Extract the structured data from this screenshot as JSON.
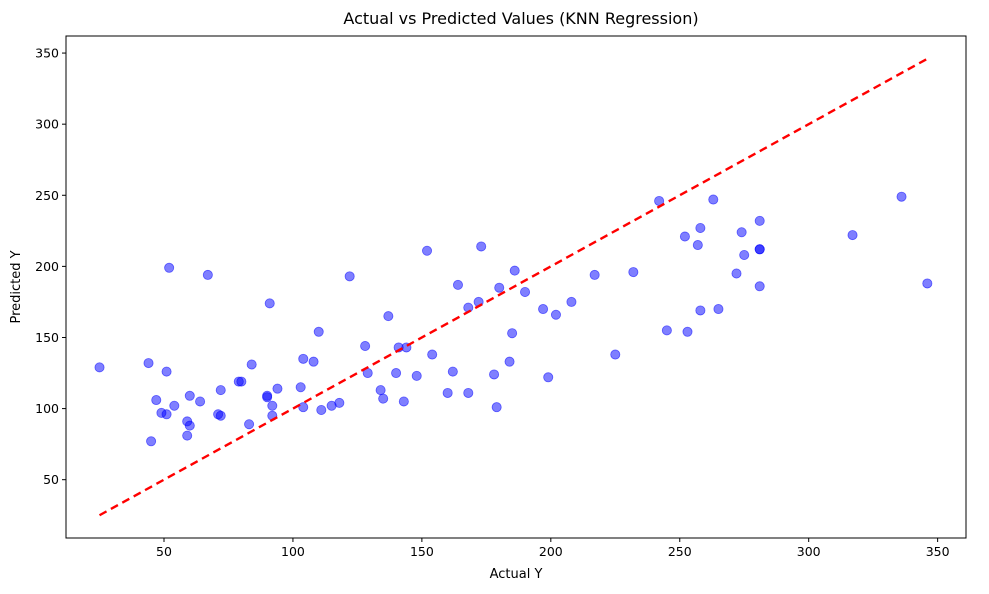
{
  "chart_data": {
    "type": "scatter",
    "title": "Actual vs Predicted Values (KNN Regression)",
    "xlabel": "Actual Y",
    "ylabel": "Predicted Y",
    "xlim": [
      12,
      361
    ],
    "ylim": [
      9,
      362
    ],
    "xticks": [
      50,
      100,
      150,
      200,
      250,
      300,
      350
    ],
    "yticks": [
      50,
      100,
      150,
      200,
      250,
      300,
      350
    ],
    "grid": false,
    "legend": "none",
    "point_color": "#0000ff",
    "point_opacity": 0.5,
    "reference_line": {
      "x": [
        25,
        346
      ],
      "y": [
        25,
        346
      ],
      "color": "#ff0000",
      "style": "dashed"
    },
    "points": [
      [
        25,
        129
      ],
      [
        44,
        132
      ],
      [
        45,
        77
      ],
      [
        47,
        106
      ],
      [
        49,
        97
      ],
      [
        51,
        96
      ],
      [
        51,
        126
      ],
      [
        52,
        199
      ],
      [
        54,
        102
      ],
      [
        59,
        81
      ],
      [
        59,
        91
      ],
      [
        60,
        88
      ],
      [
        60,
        109
      ],
      [
        64,
        105
      ],
      [
        67,
        194
      ],
      [
        71,
        96
      ],
      [
        72,
        113
      ],
      [
        72,
        95
      ],
      [
        79,
        119
      ],
      [
        80,
        119
      ],
      [
        83,
        89
      ],
      [
        84,
        131
      ],
      [
        90,
        109
      ],
      [
        90,
        108
      ],
      [
        91,
        174
      ],
      [
        92,
        102
      ],
      [
        92,
        95
      ],
      [
        94,
        114
      ],
      [
        103,
        115
      ],
      [
        104,
        135
      ],
      [
        104,
        101
      ],
      [
        108,
        133
      ],
      [
        110,
        154
      ],
      [
        111,
        99
      ],
      [
        115,
        102
      ],
      [
        118,
        104
      ],
      [
        122,
        193
      ],
      [
        128,
        144
      ],
      [
        129,
        125
      ],
      [
        134,
        113
      ],
      [
        135,
        107
      ],
      [
        137,
        165
      ],
      [
        140,
        125
      ],
      [
        141,
        143
      ],
      [
        143,
        105
      ],
      [
        144,
        143
      ],
      [
        148,
        123
      ],
      [
        152,
        211
      ],
      [
        154,
        138
      ],
      [
        160,
        111
      ],
      [
        162,
        126
      ],
      [
        164,
        187
      ],
      [
        168,
        171
      ],
      [
        168,
        111
      ],
      [
        172,
        175
      ],
      [
        173,
        214
      ],
      [
        178,
        124
      ],
      [
        179,
        101
      ],
      [
        180,
        185
      ],
      [
        184,
        133
      ],
      [
        185,
        153
      ],
      [
        186,
        197
      ],
      [
        190,
        182
      ],
      [
        197,
        170
      ],
      [
        199,
        122
      ],
      [
        202,
        166
      ],
      [
        208,
        175
      ],
      [
        217,
        194
      ],
      [
        225,
        138
      ],
      [
        232,
        196
      ],
      [
        242,
        246
      ],
      [
        245,
        155
      ],
      [
        252,
        221
      ],
      [
        253,
        154
      ],
      [
        257,
        215
      ],
      [
        258,
        227
      ],
      [
        258,
        169
      ],
      [
        263,
        247
      ],
      [
        265,
        170
      ],
      [
        272,
        195
      ],
      [
        274,
        224
      ],
      [
        275,
        208
      ],
      [
        281,
        232
      ],
      [
        281,
        212
      ],
      [
        281,
        186
      ],
      [
        281,
        212
      ],
      [
        317,
        222
      ],
      [
        336,
        249
      ],
      [
        346,
        188
      ]
    ]
  }
}
